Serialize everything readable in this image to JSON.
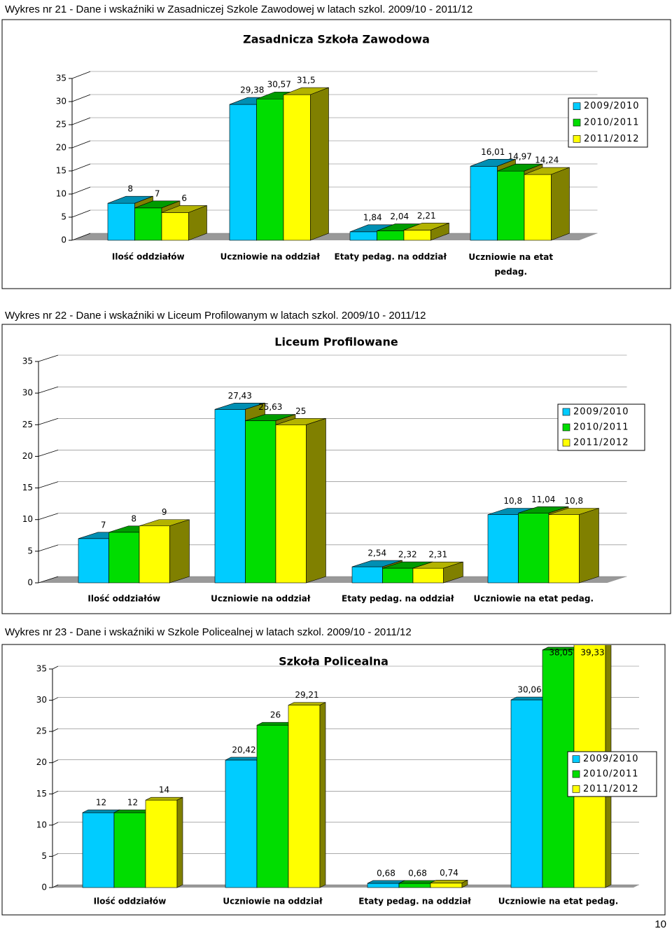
{
  "captions": [
    "Wykres nr 21 - Dane i wskaźniki w Zasadniczej Szkole Zawodowej w latach szkol. 2009/10 - 2011/12",
    "Wykres nr 22 - Dane i wskaźniki w Liceum Profilowanym w latach szkol. 2009/10 - 2011/12",
    "Wykres nr 23 - Dane i wskaźniki w Szkole Policealnej w latach szkol. 2009/10 - 2011/12"
  ],
  "page_number": "10",
  "chart_data": [
    {
      "type": "bar3d",
      "title": "Zasadnicza Szkoła Zawodowa",
      "categories": [
        "Ilość oddziałów",
        "Uczniowie na oddział",
        "Etaty pedag. na oddział",
        "Uczniowie na etat pedag."
      ],
      "series": [
        {
          "name": "2009/2010",
          "color": "#00ccff",
          "values": [
            8,
            29.38,
            1.84,
            16.01
          ],
          "value_labels": [
            "8",
            "29,38",
            "1,84",
            "16,01"
          ]
        },
        {
          "name": "2010/2011",
          "color": "#00dd00",
          "values": [
            7,
            30.57,
            2.04,
            14.97
          ],
          "value_labels": [
            "7",
            "30,57",
            "2,04",
            "14,97"
          ]
        },
        {
          "name": "2011/2012",
          "color": "#ffff00",
          "values": [
            6,
            31.5,
            2.21,
            14.24
          ],
          "value_labels": [
            "6",
            "31,5",
            "2,21",
            "14,24"
          ]
        }
      ],
      "ylim": [
        0,
        35
      ],
      "yticks": [
        0,
        5,
        10,
        15,
        20,
        25,
        30,
        35
      ],
      "grid": true,
      "legend": "right"
    },
    {
      "type": "bar3d",
      "title": "Liceum Profilowane",
      "categories": [
        "Ilość oddziałów",
        "Uczniowie na oddział",
        "Etaty pedag. na oddział",
        "Uczniowie na etat pedag."
      ],
      "series": [
        {
          "name": "2009/2010",
          "color": "#00ccff",
          "values": [
            7,
            27.43,
            2.54,
            10.8
          ],
          "value_labels": [
            "7",
            "27,43",
            "2,54",
            "10,8"
          ]
        },
        {
          "name": "2010/2011",
          "color": "#00dd00",
          "values": [
            8,
            25.63,
            2.32,
            11.04
          ],
          "value_labels": [
            "8",
            "25,63",
            "2,32",
            "11,04"
          ]
        },
        {
          "name": "2011/2012",
          "color": "#ffff00",
          "values": [
            9,
            25,
            2.31,
            10.8
          ],
          "value_labels": [
            "9",
            "25",
            "2,31",
            "10,8"
          ]
        }
      ],
      "ylim": [
        0,
        35
      ],
      "yticks": [
        0,
        5,
        10,
        15,
        20,
        25,
        30,
        35
      ],
      "grid": true,
      "legend": "right"
    },
    {
      "type": "bar3d",
      "title": "Szkoła Policealna",
      "categories": [
        "Ilość oddziałów",
        "Uczniowie na oddział",
        "Etaty pedag. na oddział",
        "Uczniowie na etat pedag."
      ],
      "series": [
        {
          "name": "2009/2010",
          "color": "#00ccff",
          "values": [
            12,
            20.42,
            0.68,
            30.06
          ],
          "value_labels": [
            "12",
            "20,42",
            "0,68",
            "30,06"
          ]
        },
        {
          "name": "2010/2011",
          "color": "#00dd00",
          "values": [
            12,
            26,
            0.68,
            38.05
          ],
          "value_labels": [
            "12",
            "26",
            "0,68",
            "38,05"
          ]
        },
        {
          "name": "2011/2012",
          "color": "#ffff00",
          "values": [
            14,
            29.21,
            0.74,
            39.33
          ],
          "value_labels": [
            "14",
            "29,21",
            "0,74",
            "39,33"
          ]
        }
      ],
      "ylim": [
        0,
        35
      ],
      "yticks": [
        0,
        5,
        10,
        15,
        20,
        25,
        30,
        35
      ],
      "grid": true,
      "legend": "right"
    }
  ]
}
